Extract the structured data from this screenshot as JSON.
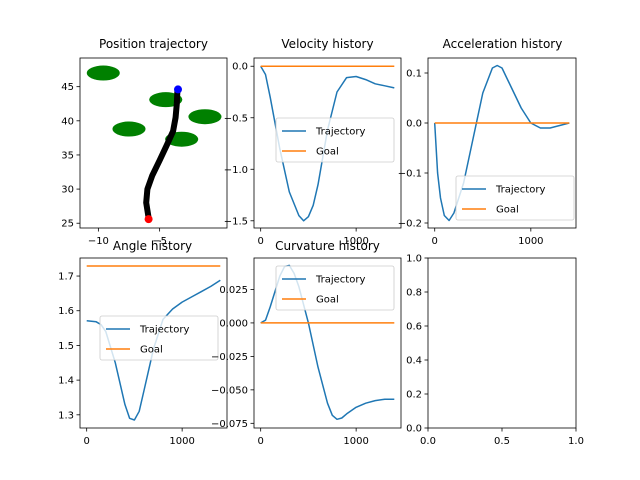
{
  "chart_data": [
    {
      "type": "scatter",
      "title": "Position trajectory",
      "xlim": [
        -11.5,
        0.5
      ],
      "ylim": [
        24.3,
        49.2
      ],
      "xticks": [
        -10,
        -5
      ],
      "yticks": [
        25,
        30,
        35,
        40,
        45
      ],
      "trajectory": {
        "color": "#000000",
        "points": [
          [
            -5.9,
            25.8
          ],
          [
            -6.1,
            28
          ],
          [
            -6.0,
            30
          ],
          [
            -5.6,
            32
          ],
          [
            -5.0,
            34.2
          ],
          [
            -4.4,
            36.5
          ],
          [
            -3.9,
            38.5
          ],
          [
            -3.7,
            40.5
          ],
          [
            -3.6,
            42.5
          ],
          [
            -3.55,
            44.4
          ]
        ]
      },
      "start_marker": {
        "x": -5.9,
        "y": 25.6,
        "color": "#ff0000"
      },
      "end_marker": {
        "x": -3.5,
        "y": 44.6,
        "color": "#0000ff"
      },
      "obstacles": {
        "color": "#008000",
        "ellipses": [
          {
            "x": -9.6,
            "y": 47.0,
            "rx": 1.35,
            "ry": 1.1
          },
          {
            "x": -4.5,
            "y": 43.1,
            "rx": 1.35,
            "ry": 1.1
          },
          {
            "x": -7.5,
            "y": 38.8,
            "rx": 1.35,
            "ry": 1.1
          },
          {
            "x": -1.3,
            "y": 40.6,
            "rx": 1.35,
            "ry": 1.1
          },
          {
            "x": -3.2,
            "y": 37.3,
            "rx": 1.35,
            "ry": 1.1
          }
        ]
      }
    },
    {
      "type": "line",
      "title": "Velocity history",
      "xlim": [
        -70,
        1470
      ],
      "ylim": [
        -1.57,
        0.08
      ],
      "xticks": [
        0,
        1000
      ],
      "xtick_labels": [
        "0",
        "1000"
      ],
      "yticks": [
        0.0,
        -0.5,
        -1.0,
        -1.5
      ],
      "ytick_labels": [
        "0.0",
        "−0.5",
        "−1.0",
        "−1.5"
      ],
      "legend": "center-left",
      "series": [
        {
          "name": "Trajectory",
          "color": "#1f77b4",
          "x": [
            0,
            50,
            100,
            200,
            300,
            400,
            450,
            500,
            550,
            600,
            700,
            800,
            900,
            1000,
            1100,
            1200,
            1300,
            1400
          ],
          "y": [
            0.0,
            -0.08,
            -0.3,
            -0.8,
            -1.22,
            -1.45,
            -1.5,
            -1.46,
            -1.35,
            -1.15,
            -0.62,
            -0.25,
            -0.11,
            -0.1,
            -0.13,
            -0.17,
            -0.19,
            -0.21
          ]
        },
        {
          "name": "Goal",
          "color": "#ff7f0e",
          "x": [
            0,
            1400
          ],
          "y": [
            0.0,
            0.0
          ]
        }
      ]
    },
    {
      "type": "line",
      "title": "Acceleration history",
      "xlim": [
        -70,
        1470
      ],
      "ylim": [
        -0.21,
        0.13
      ],
      "xticks": [
        0,
        1000
      ],
      "xtick_labels": [
        "0",
        "1000"
      ],
      "yticks": [
        0.1,
        0.0,
        -0.1,
        -0.2
      ],
      "ytick_labels": [
        "0.1",
        "0.0",
        "−0.1",
        "−0.2"
      ],
      "legend": "lower-right",
      "series": [
        {
          "name": "Trajectory",
          "color": "#1f77b4",
          "x": [
            0,
            30,
            60,
            100,
            150,
            200,
            300,
            400,
            500,
            600,
            650,
            700,
            800,
            900,
            1000,
            1100,
            1200,
            1300,
            1400
          ],
          "y": [
            0.0,
            -0.1,
            -0.15,
            -0.185,
            -0.195,
            -0.18,
            -0.12,
            -0.03,
            0.06,
            0.11,
            0.115,
            0.11,
            0.07,
            0.03,
            0.0,
            -0.01,
            -0.01,
            -0.005,
            0.0
          ]
        },
        {
          "name": "Goal",
          "color": "#ff7f0e",
          "x": [
            0,
            1400
          ],
          "y": [
            0.0,
            0.0
          ]
        }
      ]
    },
    {
      "type": "line",
      "title": "Angle history",
      "xlim": [
        -70,
        1470
      ],
      "ylim": [
        1.262,
        1.752
      ],
      "xticks": [
        0,
        1000
      ],
      "xtick_labels": [
        "0",
        "1000"
      ],
      "yticks": [
        1.3,
        1.4,
        1.5,
        1.6,
        1.7
      ],
      "ytick_labels": [
        "1.3",
        "1.4",
        "1.5",
        "1.6",
        "1.7"
      ],
      "legend": "center",
      "series": [
        {
          "name": "Trajectory",
          "color": "#1f77b4",
          "x": [
            0,
            100,
            150,
            200,
            300,
            400,
            450,
            500,
            550,
            600,
            700,
            800,
            900,
            1000,
            1100,
            1200,
            1300,
            1400
          ],
          "y": [
            1.571,
            1.568,
            1.56,
            1.54,
            1.45,
            1.33,
            1.29,
            1.285,
            1.31,
            1.37,
            1.49,
            1.575,
            1.605,
            1.625,
            1.64,
            1.655,
            1.67,
            1.688
          ]
        },
        {
          "name": "Goal",
          "color": "#ff7f0e",
          "x": [
            0,
            1400
          ],
          "y": [
            1.729,
            1.729
          ]
        }
      ]
    },
    {
      "type": "line",
      "title": "Curvature history",
      "xlim": [
        -70,
        1470
      ],
      "ylim": [
        -0.0785,
        0.0485
      ],
      "xticks": [
        0,
        1000
      ],
      "xtick_labels": [
        "0",
        "1000"
      ],
      "yticks": [
        0.025,
        0.0,
        -0.025,
        -0.05,
        -0.075
      ],
      "ytick_labels": [
        "0.025",
        "0.000",
        "−0.025",
        "−0.050",
        "−0.075"
      ],
      "legend": "upper-center",
      "series": [
        {
          "name": "Trajectory",
          "color": "#1f77b4",
          "x": [
            0,
            50,
            100,
            200,
            250,
            300,
            350,
            400,
            500,
            600,
            700,
            750,
            800,
            850,
            900,
            1000,
            1100,
            1200,
            1300,
            1400
          ],
          "y": [
            0.0,
            0.002,
            0.012,
            0.035,
            0.042,
            0.043,
            0.037,
            0.027,
            0.0,
            -0.033,
            -0.06,
            -0.069,
            -0.072,
            -0.071,
            -0.068,
            -0.063,
            -0.06,
            -0.058,
            -0.057,
            -0.057
          ]
        },
        {
          "name": "Goal",
          "color": "#ff7f0e",
          "x": [
            0,
            1400
          ],
          "y": [
            0.0,
            0.0
          ]
        }
      ]
    },
    {
      "type": "line",
      "title": "",
      "xlim": [
        0,
        1
      ],
      "ylim": [
        0,
        1
      ],
      "xticks": [
        0.0,
        0.5,
        1.0
      ],
      "xtick_labels": [
        "0.0",
        "0.5",
        "1.0"
      ],
      "yticks": [
        0.0,
        0.2,
        0.4,
        0.6,
        0.8,
        1.0
      ],
      "ytick_labels": [
        "0.0",
        "0.2",
        "0.4",
        "0.6",
        "0.8",
        "1.0"
      ],
      "series": []
    }
  ]
}
